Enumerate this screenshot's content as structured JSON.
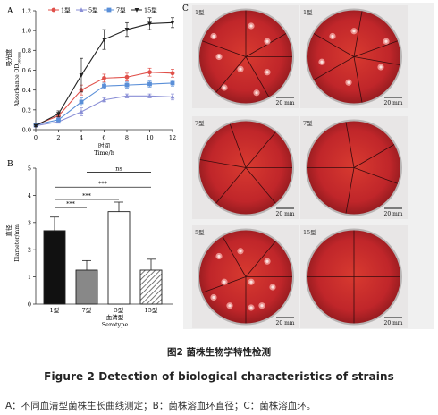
{
  "panel_a": {
    "label": "A",
    "ylabel_zh": "吸光度",
    "ylabel_en": "Absorbance OD",
    "ylabel_sub": "600nm",
    "xlabel_zh": "时间",
    "xlabel_en": "Time/h"
  },
  "panel_b": {
    "label": "B",
    "ylabel_zh": "直径",
    "ylabel_en": "Diameter/mm",
    "xlabel_zh": "血清型",
    "xlabel_en": "Serotype",
    "sig": [
      "ns",
      "***",
      "***",
      "***"
    ]
  },
  "panel_c": {
    "label": "C",
    "plates": [
      {
        "label": "1型",
        "scale": "20 mm"
      },
      {
        "label": "1型",
        "scale": "20 mm"
      },
      {
        "label": "7型",
        "scale": "20 mm"
      },
      {
        "label": "7型",
        "scale": "20 mm"
      },
      {
        "label": "5型",
        "scale": "20 mm"
      },
      {
        "label": "15型",
        "scale": "20 mm"
      }
    ]
  },
  "caption_zh": "图2  菌株生物学特性检测",
  "caption_en": "Figure 2  Detection of biological characteristics of strains",
  "legend_note": "A：不同血清型菌株生长曲线测定；B：菌株溶血环直径；C：菌株溶血环。",
  "colors": {
    "s1": "#e0504a",
    "s5": "#8a8fd6",
    "s7": "#5a8fd8",
    "s15": "#222222",
    "plate_red": "#c4282a",
    "photo_bg": "#f0f0f0"
  },
  "chart_data": [
    {
      "type": "line",
      "xlabel": "时间 Time/h",
      "ylabel": "吸光度 Absorbance OD600nm",
      "x": [
        0,
        2,
        4,
        6,
        8,
        10,
        12
      ],
      "xlim": [
        0,
        12
      ],
      "ylim": [
        0,
        1.2
      ],
      "xticks": [
        "0",
        "2",
        "4",
        "6",
        "8",
        "10",
        "12"
      ],
      "yticks": [
        "0.0",
        "0.2",
        "0.4",
        "0.6",
        "0.8",
        "1.0",
        "1.2"
      ],
      "legend_position": "top",
      "series": [
        {
          "name": "1型",
          "marker": "circle",
          "values": [
            0.05,
            0.14,
            0.4,
            0.52,
            0.53,
            0.58,
            0.57
          ],
          "errors": [
            0.01,
            0.02,
            0.05,
            0.04,
            0.04,
            0.04,
            0.04
          ]
        },
        {
          "name": "5型",
          "marker": "triangle",
          "values": [
            0.04,
            0.08,
            0.18,
            0.3,
            0.34,
            0.34,
            0.33
          ],
          "errors": [
            0.01,
            0.01,
            0.04,
            0.02,
            0.02,
            0.02,
            0.03
          ]
        },
        {
          "name": "7型",
          "marker": "square",
          "values": [
            0.05,
            0.1,
            0.28,
            0.44,
            0.45,
            0.46,
            0.47
          ],
          "errors": [
            0.01,
            0.02,
            0.04,
            0.03,
            0.03,
            0.03,
            0.03
          ]
        },
        {
          "name": "15型",
          "marker": "triangle-down",
          "values": [
            0.04,
            0.16,
            0.55,
            0.91,
            1.01,
            1.07,
            1.08
          ],
          "errors": [
            0.01,
            0.03,
            0.17,
            0.1,
            0.07,
            0.06,
            0.05
          ]
        }
      ]
    },
    {
      "type": "bar",
      "xlabel": "血清型 Serotype",
      "ylabel": "直径 Diameter/mm",
      "categories": [
        "1型",
        "7型",
        "5型",
        "15型"
      ],
      "values": [
        2.7,
        1.25,
        3.4,
        1.25
      ],
      "errors": [
        0.5,
        0.35,
        0.35,
        0.4
      ],
      "ylim": [
        0,
        5
      ],
      "yticks": [
        "0",
        "1",
        "2",
        "3",
        "4",
        "5"
      ],
      "fills": [
        "solid-black",
        "gray",
        "white",
        "hatched"
      ]
    }
  ]
}
